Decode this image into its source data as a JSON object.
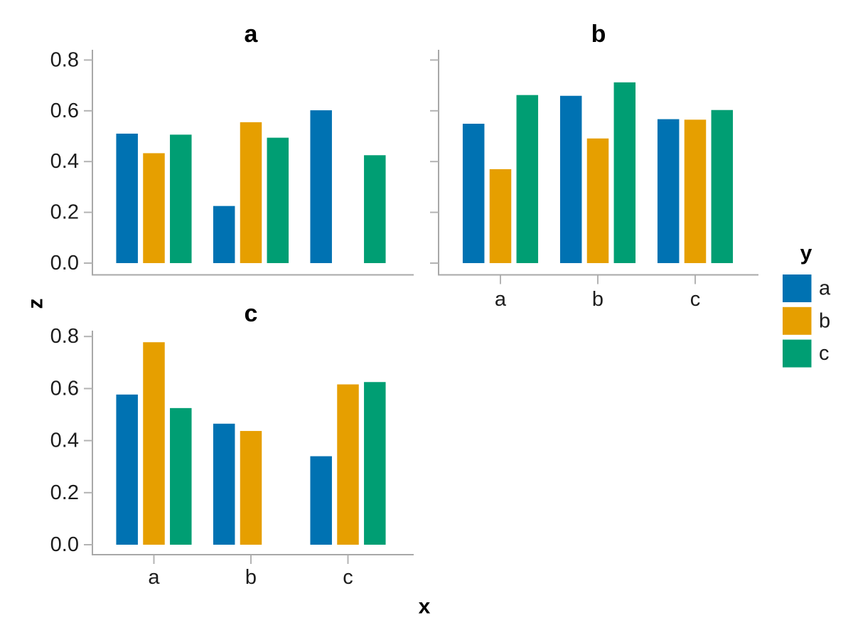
{
  "figure": {
    "background": "#ffffff",
    "xlabel": "x",
    "ylabel": "z",
    "legend": {
      "title": "y",
      "entries": [
        {
          "label": "a",
          "color": "#0072B2"
        },
        {
          "label": "b",
          "color": "#E69F00"
        },
        {
          "label": "c",
          "color": "#009E73"
        }
      ]
    }
  },
  "chart_data": {
    "type": "bar",
    "title": "",
    "xlabel": "x",
    "ylabel": "z",
    "legend_title": "y",
    "categories": [
      "a",
      "b",
      "c"
    ],
    "series_names": [
      "a",
      "b",
      "c"
    ],
    "palette": [
      "#0072B2",
      "#E69F00",
      "#009E73"
    ],
    "ylim": [
      0.0,
      0.84
    ],
    "y_ticks": [
      0.0,
      0.2,
      0.4,
      0.6,
      0.8
    ],
    "grid": "off",
    "legend_position": "right",
    "facets": [
      {
        "title": "a",
        "show_y_tick_labels": true,
        "show_x_tick_labels": false,
        "series": [
          {
            "name": "a",
            "values": [
              0.51,
              0.225,
              0.602
            ]
          },
          {
            "name": "b",
            "values": [
              0.433,
              0.555,
              null
            ]
          },
          {
            "name": "c",
            "values": [
              0.506,
              0.494,
              0.425
            ]
          }
        ]
      },
      {
        "title": "b",
        "show_y_tick_labels": false,
        "show_x_tick_labels": true,
        "series": [
          {
            "name": "a",
            "values": [
              0.549,
              0.659,
              0.567
            ]
          },
          {
            "name": "b",
            "values": [
              0.37,
              0.491,
              0.565
            ]
          },
          {
            "name": "c",
            "values": [
              0.662,
              0.712,
              0.603
            ]
          }
        ]
      },
      {
        "title": "c",
        "show_y_tick_labels": true,
        "show_x_tick_labels": true,
        "series": [
          {
            "name": "a",
            "values": [
              0.577,
              0.465,
              0.34
            ]
          },
          {
            "name": "b",
            "values": [
              0.778,
              0.437,
              0.616
            ]
          },
          {
            "name": "c",
            "values": [
              0.525,
              null,
              0.625
            ]
          }
        ]
      }
    ]
  },
  "style_colors": {
    "spine": "#a8a8a8",
    "tick": "#b3b3b3",
    "tick_label": "#1c1c1c",
    "title": "#000000"
  }
}
